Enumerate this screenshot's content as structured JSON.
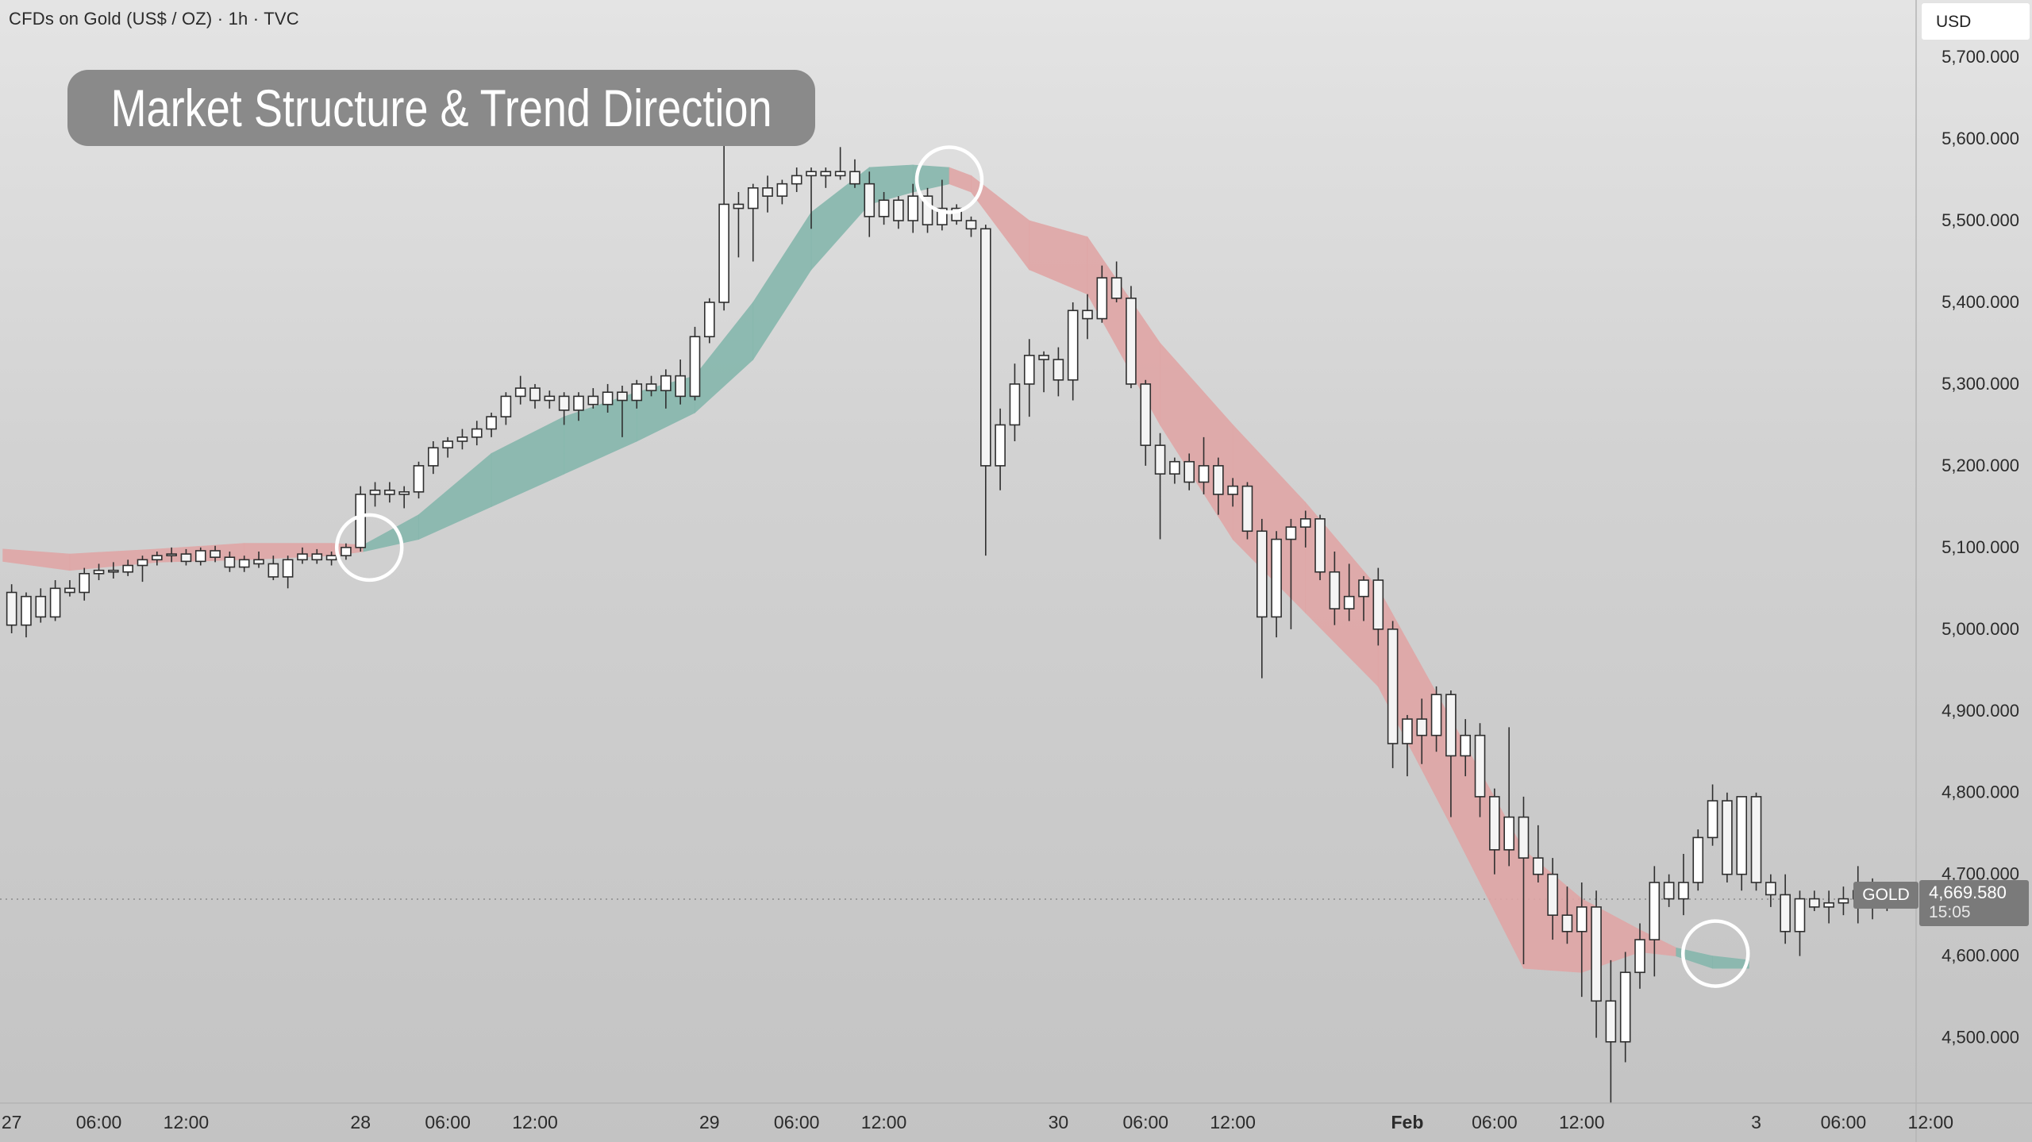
{
  "header": {
    "symbol_title": "CFDs on Gold (US$ / OZ) · 1h · TVC",
    "banner_title": "Market Structure & Trend Direction",
    "currency": "USD"
  },
  "last_price": {
    "symbol": "GOLD",
    "price": "4,669.580",
    "countdown": "15:05",
    "value": 4669.58
  },
  "colors": {
    "bull_cloud": "#86b7ad",
    "bear_cloud": "#e0a6a6",
    "candle_fill": "#ffffff",
    "candle_outline": "#2f2f2f",
    "marker_circle": "#ffffff"
  },
  "chart_data": {
    "type": "candlestick",
    "title": "",
    "ylim": [
      4420,
      5770
    ],
    "y_ticks": [
      "5,700.000",
      "5,600.000",
      "5,500.000",
      "5,400.000",
      "5,300.000",
      "5,200.000",
      "5,100.000",
      "5,000.000",
      "4,900.000",
      "4,800.000",
      "4,700.000",
      "4,600.000",
      "4,500.000"
    ],
    "y_tick_values": [
      5700,
      5600,
      5500,
      5400,
      5300,
      5200,
      5100,
      5000,
      4900,
      4800,
      4700,
      4600,
      4500
    ],
    "x_range": [
      -0.8,
      131
    ],
    "x_ticks": [
      {
        "label": "27",
        "i": 0,
        "bold": false
      },
      {
        "label": "06:00",
        "i": 6,
        "bold": false
      },
      {
        "label": "12:00",
        "i": 12,
        "bold": false
      },
      {
        "label": "28",
        "i": 24,
        "bold": false
      },
      {
        "label": "06:00",
        "i": 30,
        "bold": false
      },
      {
        "label": "12:00",
        "i": 36,
        "bold": false
      },
      {
        "label": "29",
        "i": 48,
        "bold": false
      },
      {
        "label": "06:00",
        "i": 54,
        "bold": false
      },
      {
        "label": "12:00",
        "i": 60,
        "bold": false
      },
      {
        "label": "30",
        "i": 72,
        "bold": false
      },
      {
        "label": "06:00",
        "i": 78,
        "bold": false
      },
      {
        "label": "12:00",
        "i": 84,
        "bold": false
      },
      {
        "label": "Feb",
        "i": 96,
        "bold": true
      },
      {
        "label": "06:00",
        "i": 102,
        "bold": false
      },
      {
        "label": "12:00",
        "i": 108,
        "bold": false
      },
      {
        "label": "3",
        "i": 120,
        "bold": false
      },
      {
        "label": "06:00",
        "i": 126,
        "bold": false
      },
      {
        "label": "12:00",
        "i": 132,
        "bold": false
      }
    ],
    "candles": [
      [
        5045,
        5055,
        4995,
        5005
      ],
      [
        5005,
        5045,
        4990,
        5040
      ],
      [
        5040,
        5050,
        5008,
        5015
      ],
      [
        5015,
        5060,
        5010,
        5050
      ],
      [
        5050,
        5060,
        5040,
        5045
      ],
      [
        5045,
        5075,
        5035,
        5068
      ],
      [
        5068,
        5080,
        5060,
        5072
      ],
      [
        5072,
        5082,
        5062,
        5070
      ],
      [
        5070,
        5085,
        5065,
        5078
      ],
      [
        5078,
        5090,
        5058,
        5085
      ],
      [
        5085,
        5095,
        5078,
        5090
      ],
      [
        5090,
        5100,
        5082,
        5092
      ],
      [
        5092,
        5098,
        5078,
        5083
      ],
      [
        5083,
        5100,
        5078,
        5096
      ],
      [
        5096,
        5102,
        5082,
        5088
      ],
      [
        5088,
        5095,
        5070,
        5076
      ],
      [
        5076,
        5090,
        5070,
        5085
      ],
      [
        5085,
        5095,
        5075,
        5080
      ],
      [
        5080,
        5090,
        5060,
        5064
      ],
      [
        5064,
        5090,
        5050,
        5085
      ],
      [
        5085,
        5100,
        5080,
        5092
      ],
      [
        5092,
        5098,
        5080,
        5085
      ],
      [
        5085,
        5095,
        5078,
        5090
      ],
      [
        5090,
        5105,
        5085,
        5100
      ],
      [
        5100,
        5175,
        5095,
        5165
      ],
      [
        5165,
        5180,
        5150,
        5170
      ],
      [
        5170,
        5180,
        5155,
        5165
      ],
      [
        5165,
        5175,
        5148,
        5168
      ],
      [
        5168,
        5205,
        5160,
        5200
      ],
      [
        5200,
        5230,
        5190,
        5222
      ],
      [
        5222,
        5235,
        5210,
        5230
      ],
      [
        5230,
        5245,
        5220,
        5235
      ],
      [
        5235,
        5255,
        5225,
        5245
      ],
      [
        5245,
        5265,
        5235,
        5260
      ],
      [
        5260,
        5290,
        5250,
        5285
      ],
      [
        5285,
        5310,
        5275,
        5295
      ],
      [
        5295,
        5300,
        5270,
        5280
      ],
      [
        5280,
        5292,
        5270,
        5285
      ],
      [
        5285,
        5290,
        5250,
        5268
      ],
      [
        5268,
        5290,
        5255,
        5285
      ],
      [
        5285,
        5295,
        5270,
        5275
      ],
      [
        5275,
        5300,
        5265,
        5290
      ],
      [
        5290,
        5298,
        5235,
        5280
      ],
      [
        5280,
        5305,
        5270,
        5300
      ],
      [
        5300,
        5310,
        5285,
        5292
      ],
      [
        5292,
        5318,
        5270,
        5310
      ],
      [
        5310,
        5330,
        5275,
        5285
      ],
      [
        5285,
        5370,
        5280,
        5358
      ],
      [
        5358,
        5405,
        5350,
        5400
      ],
      [
        5400,
        5600,
        5390,
        5520
      ],
      [
        5520,
        5535,
        5455,
        5515
      ],
      [
        5515,
        5545,
        5450,
        5540
      ],
      [
        5540,
        5555,
        5510,
        5530
      ],
      [
        5530,
        5550,
        5520,
        5545
      ],
      [
        5545,
        5565,
        5535,
        5555
      ],
      [
        5555,
        5565,
        5490,
        5560
      ],
      [
        5560,
        5565,
        5540,
        5555
      ],
      [
        5555,
        5590,
        5550,
        5560
      ],
      [
        5560,
        5575,
        5540,
        5545
      ],
      [
        5545,
        5560,
        5480,
        5505
      ],
      [
        5505,
        5535,
        5495,
        5525
      ],
      [
        5525,
        5530,
        5490,
        5500
      ],
      [
        5500,
        5545,
        5485,
        5530
      ],
      [
        5530,
        5540,
        5485,
        5495
      ],
      [
        5495,
        5550,
        5488,
        5515
      ],
      [
        5515,
        5520,
        5495,
        5500
      ],
      [
        5500,
        5505,
        5480,
        5490
      ],
      [
        5490,
        5495,
        5090,
        5200
      ],
      [
        5200,
        5270,
        5170,
        5250
      ],
      [
        5250,
        5325,
        5230,
        5300
      ],
      [
        5300,
        5355,
        5260,
        5335
      ],
      [
        5335,
        5340,
        5290,
        5330
      ],
      [
        5330,
        5345,
        5285,
        5305
      ],
      [
        5305,
        5400,
        5280,
        5390
      ],
      [
        5390,
        5410,
        5355,
        5380
      ],
      [
        5380,
        5445,
        5375,
        5430
      ],
      [
        5430,
        5450,
        5400,
        5405
      ],
      [
        5405,
        5420,
        5295,
        5300
      ],
      [
        5300,
        5305,
        5200,
        5225
      ],
      [
        5225,
        5240,
        5110,
        5190
      ],
      [
        5190,
        5210,
        5178,
        5205
      ],
      [
        5205,
        5215,
        5170,
        5180
      ],
      [
        5180,
        5235,
        5165,
        5200
      ],
      [
        5200,
        5210,
        5140,
        5165
      ],
      [
        5165,
        5185,
        5150,
        5175
      ],
      [
        5175,
        5180,
        5110,
        5120
      ],
      [
        5120,
        5135,
        4940,
        5015
      ],
      [
        5015,
        5120,
        4990,
        5110
      ],
      [
        5110,
        5135,
        5000,
        5125
      ],
      [
        5125,
        5145,
        5100,
        5135
      ],
      [
        5135,
        5140,
        5060,
        5070
      ],
      [
        5070,
        5095,
        5005,
        5025
      ],
      [
        5025,
        5080,
        5010,
        5040
      ],
      [
        5040,
        5065,
        5010,
        5060
      ],
      [
        5060,
        5075,
        4980,
        5000
      ],
      [
        5000,
        5010,
        4830,
        4860
      ],
      [
        4860,
        4895,
        4820,
        4890
      ],
      [
        4890,
        4915,
        4835,
        4870
      ],
      [
        4870,
        4930,
        4850,
        4920
      ],
      [
        4920,
        4925,
        4770,
        4845
      ],
      [
        4845,
        4890,
        4820,
        4870
      ],
      [
        4870,
        4885,
        4770,
        4795
      ],
      [
        4795,
        4805,
        4700,
        4730
      ],
      [
        4730,
        4880,
        4710,
        4770
      ],
      [
        4770,
        4795,
        4590,
        4720
      ],
      [
        4720,
        4760,
        4690,
        4700
      ],
      [
        4700,
        4720,
        4620,
        4650
      ],
      [
        4650,
        4685,
        4615,
        4630
      ],
      [
        4630,
        4690,
        4550,
        4660
      ],
      [
        4660,
        4680,
        4500,
        4545
      ],
      [
        4545,
        4595,
        4420,
        4495
      ],
      [
        4495,
        4605,
        4470,
        4580
      ],
      [
        4580,
        4640,
        4560,
        4620
      ],
      [
        4620,
        4710,
        4575,
        4690
      ],
      [
        4690,
        4700,
        4660,
        4670
      ],
      [
        4670,
        4725,
        4650,
        4690
      ],
      [
        4690,
        4755,
        4680,
        4745
      ],
      [
        4745,
        4810,
        4735,
        4790
      ],
      [
        4790,
        4800,
        4690,
        4700
      ],
      [
        4700,
        4795,
        4680,
        4795
      ],
      [
        4795,
        4800,
        4680,
        4690
      ],
      [
        4690,
        4700,
        4660,
        4675
      ],
      [
        4675,
        4700,
        4615,
        4630
      ],
      [
        4630,
        4680,
        4600,
        4670
      ],
      [
        4670,
        4680,
        4655,
        4660
      ],
      [
        4660,
        4680,
        4640,
        4665
      ],
      [
        4665,
        4685,
        4650,
        4670
      ],
      [
        4670,
        4710,
        4640,
        4680
      ],
      [
        4680,
        4695,
        4645,
        4660
      ],
      [
        4660,
        4685,
        4655,
        4670
      ]
    ],
    "cloud": [
      {
        "i": -0.6,
        "upper": 5098,
        "lower": 5083,
        "trend": "bear"
      },
      {
        "i": 4,
        "upper": 5092,
        "lower": 5072,
        "trend": "bear"
      },
      {
        "i": 10,
        "upper": 5098,
        "lower": 5082,
        "trend": "bear"
      },
      {
        "i": 16,
        "upper": 5105,
        "lower": 5085,
        "trend": "bear"
      },
      {
        "i": 22,
        "upper": 5105,
        "lower": 5090,
        "trend": "bear"
      },
      {
        "i": 24.2,
        "upper": 5103,
        "lower": 5095,
        "trend": "bear"
      },
      {
        "i": 28,
        "upper": 5140,
        "lower": 5110,
        "trend": "bull"
      },
      {
        "i": 33,
        "upper": 5215,
        "lower": 5150,
        "trend": "bull"
      },
      {
        "i": 38,
        "upper": 5260,
        "lower": 5190,
        "trend": "bull"
      },
      {
        "i": 43,
        "upper": 5290,
        "lower": 5230,
        "trend": "bull"
      },
      {
        "i": 47,
        "upper": 5310,
        "lower": 5265,
        "trend": "bull"
      },
      {
        "i": 51,
        "upper": 5400,
        "lower": 5330,
        "trend": "bull"
      },
      {
        "i": 55,
        "upper": 5510,
        "lower": 5440,
        "trend": "bull"
      },
      {
        "i": 59,
        "upper": 5565,
        "lower": 5520,
        "trend": "bull"
      },
      {
        "i": 62,
        "upper": 5568,
        "lower": 5535,
        "trend": "bull"
      },
      {
        "i": 64.5,
        "upper": 5565,
        "lower": 5545,
        "trend": "bull"
      },
      {
        "i": 66,
        "upper": 5555,
        "lower": 5535,
        "trend": "bear"
      },
      {
        "i": 70,
        "upper": 5500,
        "lower": 5440,
        "trend": "bear"
      },
      {
        "i": 74,
        "upper": 5480,
        "lower": 5410,
        "trend": "bear"
      },
      {
        "i": 79,
        "upper": 5350,
        "lower": 5250,
        "trend": "bear"
      },
      {
        "i": 84,
        "upper": 5250,
        "lower": 5110,
        "trend": "bear"
      },
      {
        "i": 89,
        "upper": 5155,
        "lower": 5020,
        "trend": "bear"
      },
      {
        "i": 94,
        "upper": 5050,
        "lower": 4930,
        "trend": "bear"
      },
      {
        "i": 99,
        "upper": 4890,
        "lower": 4760,
        "trend": "bear"
      },
      {
        "i": 104,
        "upper": 4730,
        "lower": 4585,
        "trend": "bear"
      },
      {
        "i": 108,
        "upper": 4670,
        "lower": 4580,
        "trend": "bear"
      },
      {
        "i": 112,
        "upper": 4632,
        "lower": 4605,
        "trend": "bear"
      },
      {
        "i": 114.5,
        "upper": 4610,
        "lower": 4600,
        "trend": "bear"
      },
      {
        "i": 117,
        "upper": 4600,
        "lower": 4585,
        "trend": "bull"
      },
      {
        "i": 119.5,
        "upper": 4595,
        "lower": 4585,
        "trend": "bull"
      }
    ],
    "markers": [
      {
        "i": 24.6,
        "value": 5100
      },
      {
        "i": 64.5,
        "value": 5550
      },
      {
        "i": 117.2,
        "value": 4603
      }
    ]
  }
}
